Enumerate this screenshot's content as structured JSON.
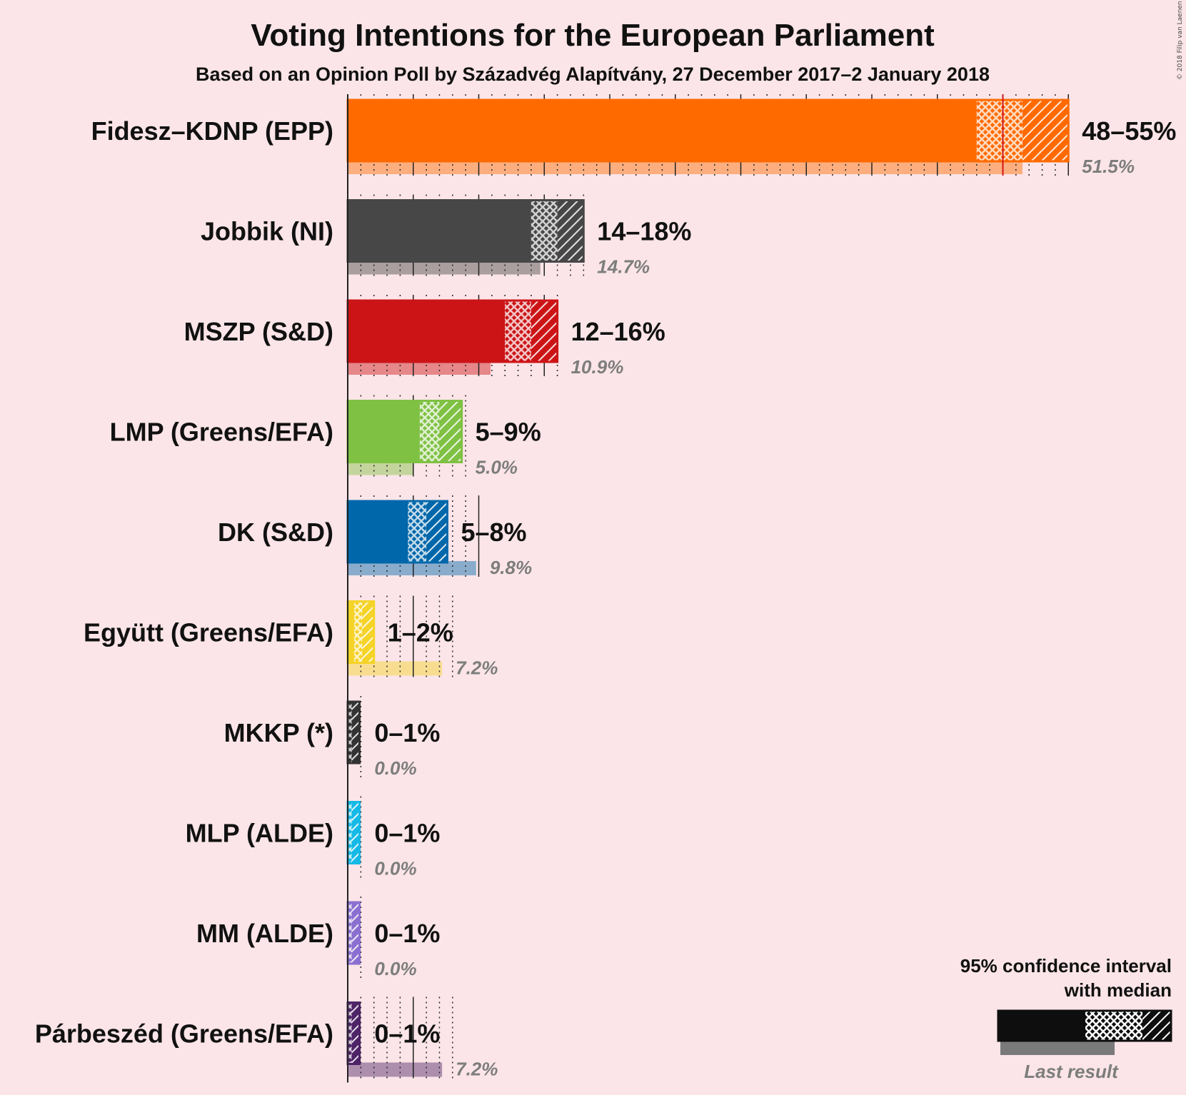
{
  "chart_data": {
    "type": "bar",
    "title": "Voting Intentions for the European Parliament",
    "subtitle": "Based on an Opinion Poll by Századvég Alapítvány, 27 December 2017–2 January 2018",
    "copyright": "© 2018 Filip van Laenen",
    "xlim": [
      0,
      55
    ],
    "majority_line": 50,
    "parties": [
      {
        "name": "Fidesz–KDNP (EPP)",
        "color": "#ff6a00",
        "low": 48,
        "median": 51.5,
        "high": 55,
        "last": 51.5,
        "range_label": "48–55%",
        "last_label": "51.5%"
      },
      {
        "name": "Jobbik (NI)",
        "color": "#474747",
        "low": 14,
        "median": 16,
        "high": 18,
        "last": 14.7,
        "range_label": "14–18%",
        "last_label": "14.7%"
      },
      {
        "name": "MSZP (S&D)",
        "color": "#cc1417",
        "low": 12,
        "median": 14,
        "high": 16,
        "last": 10.9,
        "range_label": "12–16%",
        "last_label": "10.9%"
      },
      {
        "name": "LMP (Greens/EFA)",
        "color": "#7fc143",
        "low": 5.5,
        "median": 7,
        "high": 8.7,
        "last": 5.0,
        "range_label": "5–9%",
        "last_label": "5.0%"
      },
      {
        "name": "DK (S&D)",
        "color": "#0067aa",
        "low": 4.6,
        "median": 6,
        "high": 7.6,
        "last": 9.8,
        "range_label": "5–8%",
        "last_label": "9.8%"
      },
      {
        "name": "Együtt (Greens/EFA)",
        "color": "#f5d327",
        "low": 0.5,
        "median": 1.1,
        "high": 2,
        "last": 7.2,
        "range_label": "1–2%",
        "last_label": "7.2%"
      },
      {
        "name": "MKKP (*)",
        "color": "#333333",
        "low": 0,
        "median": 0.3,
        "high": 0.9,
        "last": 0,
        "range_label": "0–1%",
        "last_label": "0.0%"
      },
      {
        "name": "MLP (ALDE)",
        "color": "#15b9e5",
        "low": 0,
        "median": 0.3,
        "high": 0.9,
        "last": 0,
        "range_label": "0–1%",
        "last_label": "0.0%"
      },
      {
        "name": "MM (ALDE)",
        "color": "#8b6fd0",
        "low": 0,
        "median": 0.3,
        "high": 0.9,
        "last": 0,
        "range_label": "0–1%",
        "last_label": "0.0%"
      },
      {
        "name": "Párbeszéd (Greens/EFA)",
        "color": "#4e2367",
        "low": 0,
        "median": 0.3,
        "high": 0.9,
        "last": 7.2,
        "range_label": "0–1%",
        "last_label": "7.2%"
      }
    ],
    "legend": {
      "line1": "95% confidence interval",
      "line2": "with median",
      "last_result": "Last result"
    }
  }
}
